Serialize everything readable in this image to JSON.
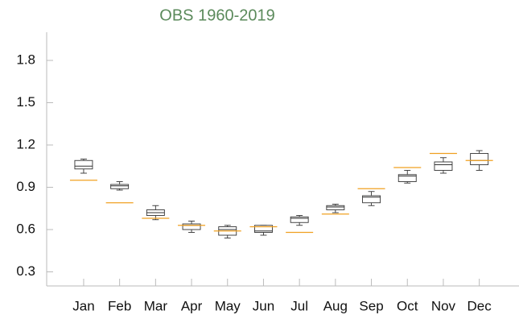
{
  "chart_data": {
    "type": "box",
    "title": "OBS 1960-2019",
    "categories": [
      "Jan",
      "Feb",
      "Mar",
      "Apr",
      "May",
      "Jun",
      "Jul",
      "Aug",
      "Sep",
      "Oct",
      "Nov",
      "Dec"
    ],
    "whisker_low": [
      1.0,
      0.88,
      0.67,
      0.58,
      0.54,
      0.56,
      0.63,
      0.72,
      0.77,
      0.93,
      1.0,
      1.02
    ],
    "q1": [
      1.03,
      0.89,
      0.7,
      0.6,
      0.56,
      0.58,
      0.65,
      0.74,
      0.79,
      0.94,
      1.02,
      1.06
    ],
    "median": [
      1.05,
      0.91,
      0.72,
      0.63,
      0.6,
      0.59,
      0.68,
      0.76,
      0.83,
      0.98,
      1.06,
      1.09
    ],
    "q3": [
      1.09,
      0.92,
      0.74,
      0.64,
      0.62,
      0.63,
      0.69,
      0.77,
      0.84,
      0.99,
      1.08,
      1.14
    ],
    "whisker_high": [
      1.1,
      0.94,
      0.77,
      0.66,
      0.63,
      0.63,
      0.7,
      0.78,
      0.87,
      1.02,
      1.11,
      1.16
    ],
    "reference": [
      0.95,
      0.79,
      0.68,
      0.63,
      0.59,
      0.62,
      0.58,
      0.71,
      0.89,
      1.04,
      1.14,
      1.09
    ],
    "box_color": "#333333",
    "reference_color": "#f0a020",
    "title_color": "#5b8a5b",
    "ylim": [
      0.2,
      2.0
    ],
    "yticks": [
      0.3,
      0.6,
      0.9,
      1.2,
      1.5,
      1.8
    ]
  }
}
